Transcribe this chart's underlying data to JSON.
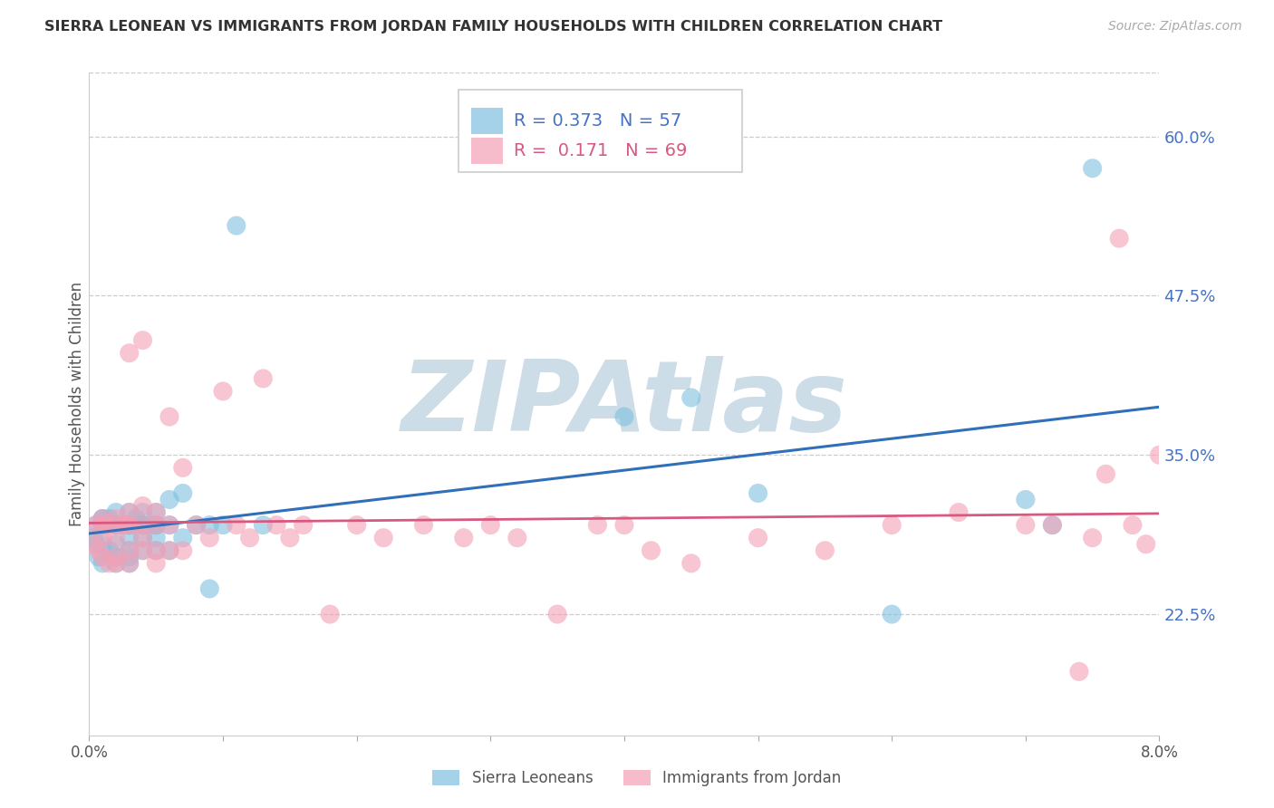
{
  "title": "SIERRA LEONEAN VS IMMIGRANTS FROM JORDAN FAMILY HOUSEHOLDS WITH CHILDREN CORRELATION CHART",
  "source": "Source: ZipAtlas.com",
  "ylabel": "Family Households with Children",
  "legend_label_blue": "Sierra Leoneans",
  "legend_label_pink": "Immigrants from Jordan",
  "r_blue": 0.373,
  "n_blue": 57,
  "r_pink": 0.171,
  "n_pink": 69,
  "xlim": [
    0.0,
    0.08
  ],
  "ylim": [
    0.13,
    0.65
  ],
  "yticks": [
    0.225,
    0.35,
    0.475,
    0.6
  ],
  "ytick_labels": [
    "22.5%",
    "35.0%",
    "47.5%",
    "60.0%"
  ],
  "xtick_positions": [
    0.0,
    0.01,
    0.02,
    0.03,
    0.04,
    0.05,
    0.06,
    0.07,
    0.08
  ],
  "xtick_labels": [
    "0.0%",
    "",
    "",
    "",
    "",
    "",
    "",
    "",
    "8.0%"
  ],
  "color_blue": "#7fbfdf",
  "color_pink": "#f4a0b5",
  "line_color_blue": "#3070b8",
  "line_color_pink": "#d85880",
  "watermark": "ZIPAtlas",
  "watermark_color": "#ccdde8",
  "blue_x": [
    0.0003,
    0.0005,
    0.0005,
    0.0007,
    0.001,
    0.001,
    0.001,
    0.001,
    0.001,
    0.0012,
    0.0015,
    0.0015,
    0.002,
    0.002,
    0.002,
    0.002,
    0.002,
    0.002,
    0.002,
    0.0025,
    0.003,
    0.003,
    0.003,
    0.003,
    0.003,
    0.003,
    0.003,
    0.003,
    0.0035,
    0.004,
    0.004,
    0.004,
    0.004,
    0.004,
    0.005,
    0.005,
    0.005,
    0.005,
    0.005,
    0.006,
    0.006,
    0.006,
    0.007,
    0.007,
    0.008,
    0.009,
    0.009,
    0.01,
    0.011,
    0.013,
    0.04,
    0.045,
    0.05,
    0.06,
    0.07,
    0.072,
    0.075
  ],
  "blue_y": [
    0.285,
    0.295,
    0.28,
    0.27,
    0.3,
    0.3,
    0.295,
    0.28,
    0.265,
    0.295,
    0.3,
    0.275,
    0.295,
    0.295,
    0.305,
    0.295,
    0.28,
    0.27,
    0.265,
    0.295,
    0.295,
    0.305,
    0.295,
    0.285,
    0.275,
    0.27,
    0.295,
    0.265,
    0.3,
    0.295,
    0.305,
    0.295,
    0.285,
    0.275,
    0.295,
    0.305,
    0.295,
    0.285,
    0.275,
    0.315,
    0.295,
    0.275,
    0.32,
    0.285,
    0.295,
    0.295,
    0.245,
    0.295,
    0.53,
    0.295,
    0.38,
    0.395,
    0.32,
    0.225,
    0.315,
    0.295,
    0.575
  ],
  "pink_x": [
    0.0003,
    0.0005,
    0.0007,
    0.001,
    0.001,
    0.001,
    0.001,
    0.0012,
    0.0015,
    0.002,
    0.002,
    0.002,
    0.002,
    0.002,
    0.0025,
    0.003,
    0.003,
    0.003,
    0.003,
    0.003,
    0.003,
    0.004,
    0.004,
    0.004,
    0.004,
    0.004,
    0.005,
    0.005,
    0.005,
    0.005,
    0.006,
    0.006,
    0.006,
    0.007,
    0.007,
    0.008,
    0.009,
    0.01,
    0.011,
    0.012,
    0.013,
    0.014,
    0.015,
    0.016,
    0.018,
    0.02,
    0.022,
    0.025,
    0.028,
    0.03,
    0.032,
    0.035,
    0.038,
    0.04,
    0.042,
    0.045,
    0.05,
    0.055,
    0.06,
    0.065,
    0.07,
    0.072,
    0.074,
    0.075,
    0.076,
    0.077,
    0.078,
    0.079,
    0.08
  ],
  "pink_y": [
    0.28,
    0.295,
    0.275,
    0.295,
    0.285,
    0.3,
    0.27,
    0.295,
    0.265,
    0.295,
    0.285,
    0.3,
    0.27,
    0.265,
    0.295,
    0.295,
    0.305,
    0.43,
    0.275,
    0.295,
    0.265,
    0.31,
    0.295,
    0.285,
    0.275,
    0.44,
    0.295,
    0.305,
    0.275,
    0.265,
    0.295,
    0.38,
    0.275,
    0.34,
    0.275,
    0.295,
    0.285,
    0.4,
    0.295,
    0.285,
    0.41,
    0.295,
    0.285,
    0.295,
    0.225,
    0.295,
    0.285,
    0.295,
    0.285,
    0.295,
    0.285,
    0.225,
    0.295,
    0.295,
    0.275,
    0.265,
    0.285,
    0.275,
    0.295,
    0.305,
    0.295,
    0.295,
    0.18,
    0.285,
    0.335,
    0.52,
    0.295,
    0.28,
    0.35
  ]
}
